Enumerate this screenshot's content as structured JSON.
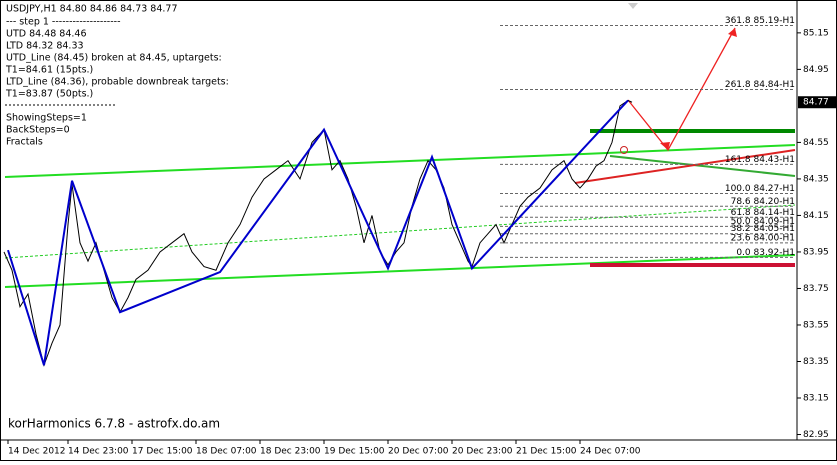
{
  "header": {
    "symbol_line": "USDJPY,H1  84.80 84.86 84.73 84.77"
  },
  "info_lines": [
    "---   step 1   --------------------",
    "UTD 84.48  84.46",
    "LTD  84.32  84.33",
    "UTD_Line (84.45) broken at 84.45, uptargets:",
    "T1=84.61 (15pts.)",
    "LTD_Line (84.36), probable downbreak targets:",
    "T1=83.87 (50pts.)"
  ],
  "settings_lines": [
    "ShowingSteps=1",
    "BackSteps=0",
    "Fractals"
  ],
  "watermark": "korHarmonics 6.7.8 - astrofx.do.am",
  "chart_data": {
    "type": "line",
    "xlim": [
      0,
      199
    ],
    "ylim": [
      82.92,
      85.33
    ],
    "xticks": [
      {
        "value": 1,
        "label": "14 Dec 2012"
      },
      {
        "value": 16,
        "label": "14 Dec 23:00"
      },
      {
        "value": 32,
        "label": "17 Dec 15:00"
      },
      {
        "value": 48,
        "label": "18 Dec 07:00"
      },
      {
        "value": 64,
        "label": "18 Dec 23:00"
      },
      {
        "value": 80,
        "label": "19 Dec 15:00"
      },
      {
        "value": 96,
        "label": "20 Dec 07:00"
      },
      {
        "value": 112,
        "label": "20 Dec 23:00"
      },
      {
        "value": 128,
        "label": "21 Dec 15:00"
      },
      {
        "value": 144,
        "label": "24 Dec 07:00"
      }
    ],
    "yticks": [
      85.15,
      84.95,
      84.55,
      84.35,
      84.15,
      83.95,
      83.75,
      83.55,
      83.35,
      83.15,
      82.95
    ],
    "current_price": 84.77,
    "series": [
      {
        "color": "#000000",
        "x": [
          0,
          2,
          4,
          6,
          8,
          10,
          12,
          14,
          16,
          17,
          19,
          21,
          23,
          25,
          27,
          29,
          31,
          33,
          36,
          39,
          42,
          45,
          47,
          50,
          53,
          56,
          59,
          62,
          65,
          68,
          71,
          74,
          77,
          80,
          82,
          84,
          86,
          88,
          90,
          92,
          94,
          96,
          98,
          100,
          102,
          104,
          106,
          108,
          110,
          112,
          114,
          116,
          117,
          119,
          121,
          123,
          125,
          127,
          129,
          131,
          134,
          137,
          140,
          142,
          144,
          146,
          148,
          150,
          152,
          154,
          156,
          157
        ],
        "values": [
          83.95,
          83.85,
          83.65,
          83.72,
          83.5,
          83.33,
          83.45,
          83.55,
          84.1,
          84.32,
          84.0,
          83.9,
          84.0,
          83.85,
          83.7,
          83.62,
          83.7,
          83.8,
          83.85,
          83.95,
          84.0,
          84.05,
          83.95,
          83.87,
          83.85,
          84.0,
          84.1,
          84.25,
          84.35,
          84.4,
          84.45,
          84.35,
          84.55,
          84.62,
          84.4,
          84.45,
          84.35,
          84.2,
          84.0,
          84.15,
          83.95,
          83.88,
          83.95,
          84.0,
          84.2,
          84.35,
          84.45,
          84.4,
          84.3,
          84.1,
          84.0,
          83.9,
          83.87,
          84.0,
          84.05,
          84.1,
          84.0,
          84.1,
          84.2,
          84.25,
          84.3,
          84.4,
          84.45,
          84.35,
          84.3,
          84.35,
          84.42,
          84.45,
          84.55,
          84.75,
          84.78,
          84.77
        ]
      },
      {
        "color": "#0000cc",
        "x": [
          1,
          10,
          17,
          29,
          54,
          80,
          96,
          107,
          117,
          156
        ],
        "values": [
          83.96,
          83.33,
          84.34,
          83.62,
          83.84,
          84.62,
          83.86,
          84.47,
          83.86,
          84.78
        ]
      }
    ],
    "fib_levels": [
      {
        "value": 85.19,
        "label": "361.8 85.19-H1"
      },
      {
        "value": 84.84,
        "label": "261.8 84.84-H1"
      },
      {
        "value": 84.43,
        "label": "161.8 84.43-H1"
      },
      {
        "value": 84.27,
        "label": "100.0 84.27-H1"
      },
      {
        "value": 84.2,
        "label": "78.6 84.20-H1"
      },
      {
        "value": 84.14,
        "label": "61.8 84.14-H1"
      },
      {
        "value": 84.09,
        "label": "50.0 84.09-H1"
      },
      {
        "value": 84.05,
        "label": "38.2 84.05-H1"
      },
      {
        "value": 84.0,
        "label": "23.6 84.00-H1"
      },
      {
        "value": 83.92,
        "label": "0.0 83.92-H1"
      }
    ]
  }
}
